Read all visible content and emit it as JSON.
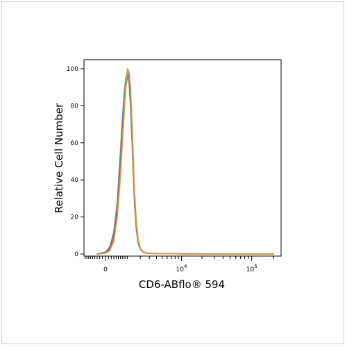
{
  "chart_data": {
    "type": "line",
    "title": "",
    "xlabel": "CD6-ABflo® 594",
    "ylabel": "Relative Cell Number",
    "x_scale": "biexponential",
    "x_ticks": [
      {
        "label": "0",
        "value": 0
      },
      {
        "base": "10",
        "exp": "4",
        "value": 10000
      },
      {
        "base": "10",
        "exp": "5",
        "value": 100000
      }
    ],
    "ylim": [
      0,
      100
    ],
    "y_ticks": [
      "0",
      "20",
      "40",
      "60",
      "80",
      "100"
    ],
    "grid": false,
    "legend": "none",
    "x": [
      -300,
      0,
      150,
      300,
      450,
      600,
      700,
      800,
      900,
      1000,
      1100,
      1200,
      1300,
      1400,
      1500,
      1650,
      1800,
      2000,
      2300,
      2700,
      3500,
      5000,
      10000,
      50000,
      200000
    ],
    "series": [
      {
        "color": "#e9821e",
        "values": [
          0,
          0.5,
          2,
          8,
          22,
          45,
          62,
          78,
          92,
          99,
          97,
          88,
          70,
          50,
          32,
          16,
          7,
          3,
          1,
          0.5,
          0.3,
          0.2,
          0.1,
          0,
          0
        ]
      },
      {
        "color": "#3aa3d6",
        "values": [
          0,
          1,
          4,
          12,
          28,
          55,
          72,
          86,
          95,
          98,
          93,
          80,
          63,
          44,
          27,
          13,
          6,
          2.5,
          1,
          0.5,
          0.3,
          0.2,
          0.1,
          0,
          0
        ]
      },
      {
        "color": "#b24a86",
        "values": [
          0,
          0.6,
          3,
          10,
          24,
          48,
          66,
          80,
          90,
          96,
          96,
          86,
          68,
          48,
          30,
          15,
          7,
          3,
          1,
          0.5,
          0.3,
          0.2,
          0.1,
          0,
          0
        ]
      },
      {
        "color": "#e39a2a",
        "values": [
          0,
          0.4,
          2,
          7,
          20,
          42,
          60,
          76,
          90,
          100,
          98,
          90,
          72,
          52,
          33,
          17,
          8,
          3,
          1.2,
          0.5,
          0.3,
          0.2,
          0.1,
          0,
          0
        ]
      }
    ]
  }
}
